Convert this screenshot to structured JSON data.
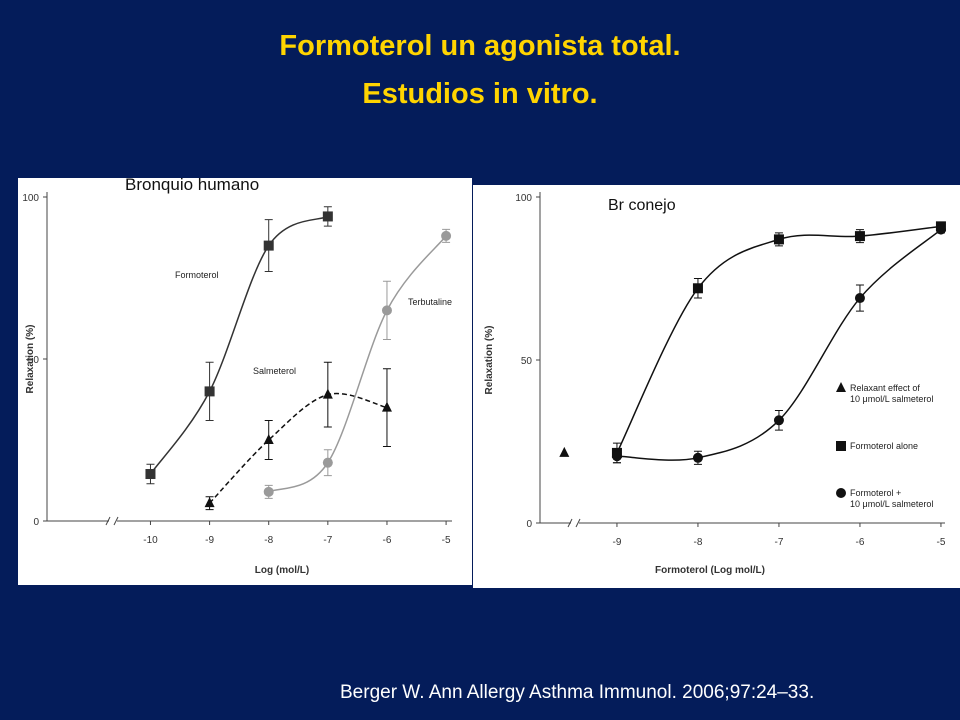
{
  "title": [
    "Formoterol un agonista total.",
    "Estudios in vitro."
  ],
  "citation": "Berger W. Ann Allergy Asthma Immunol. 2006;97:24–33.",
  "chart_data": [
    {
      "type": "line",
      "annotation": "Bronquio humano",
      "xlabel": "Log (mol/L)",
      "ylabel": "Relaxation (%)",
      "xlim": [
        -11.75,
        -4.9
      ],
      "ylim": [
        0,
        100
      ],
      "xticks": [
        -10,
        -9,
        -8,
        -7,
        -6,
        -5
      ],
      "yticks": [
        0,
        50,
        100
      ],
      "series": [
        {
          "name": "Formoterol",
          "color": "#333333",
          "marker": "square",
          "dashed": false,
          "x": [
            -10,
            -9,
            -8,
            -7
          ],
          "values": [
            14.5,
            40,
            85,
            94
          ],
          "errors": [
            3,
            9,
            8,
            3
          ]
        },
        {
          "name": "Salmeterol",
          "color": "#111111",
          "marker": "triangle",
          "dashed": true,
          "x": [
            -9,
            -8,
            -7,
            -6
          ],
          "values": [
            5.5,
            25,
            39,
            35
          ],
          "errors": [
            2,
            6,
            10,
            12
          ]
        },
        {
          "name": "Terbutaline",
          "color": "#9a9a9a",
          "marker": "circle",
          "dashed": false,
          "x": [
            -8,
            -7,
            -6,
            -5
          ],
          "values": [
            9,
            18,
            65,
            88
          ],
          "errors": [
            2,
            4,
            9,
            2
          ]
        }
      ]
    },
    {
      "type": "line",
      "annotation": "Br conejo",
      "xlabel": "Formoterol (Log mol/L)",
      "ylabel": "Relaxation (%)",
      "xlim": [
        -9.95,
        -4.95
      ],
      "ylim": [
        0,
        100
      ],
      "xticks": [
        -9,
        -8,
        -7,
        -6,
        -5
      ],
      "yticks": [
        0,
        50,
        100
      ],
      "series": [
        {
          "name": "Relaxant effect of\n10 μmol/L salmeterol",
          "color": "#111111",
          "marker": "triangle",
          "dashed": false,
          "x": [
            -9.65
          ],
          "values": [
            21.5
          ],
          "errors": [
            0
          ]
        },
        {
          "name": "Formoterol alone",
          "color": "#111111",
          "marker": "square",
          "dashed": false,
          "x": [
            -9,
            -8,
            -7,
            -6,
            -5
          ],
          "values": [
            21.5,
            72,
            87,
            88,
            91
          ],
          "errors": [
            3,
            3,
            2,
            2,
            1
          ]
        },
        {
          "name": "Formoterol +\n10 μmol/L salmeterol",
          "color": "#111111",
          "marker": "circle",
          "dashed": false,
          "x": [
            -9,
            -8,
            -7,
            -6,
            -5
          ],
          "values": [
            20.5,
            20,
            31.5,
            69,
            90
          ],
          "errors": [
            2,
            2,
            3,
            4,
            1
          ]
        }
      ]
    }
  ]
}
